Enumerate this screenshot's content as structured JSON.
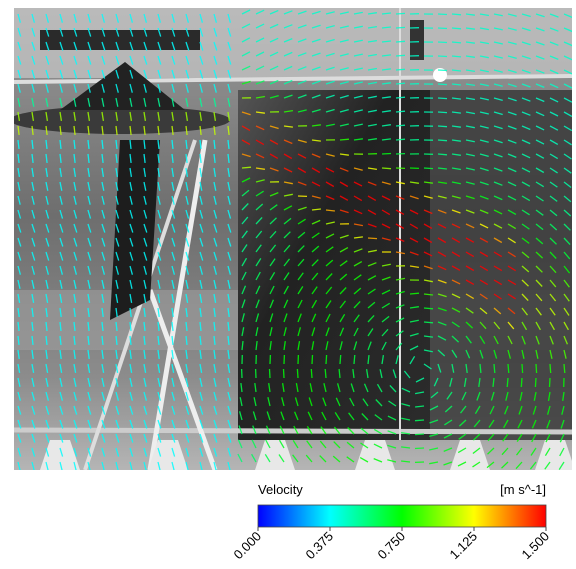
{
  "colorbar": {
    "title": "Velocity",
    "unit": "[m s^-1]",
    "range": [
      0,
      1.5
    ],
    "colors": [
      "#0000ff",
      "#00ffff",
      "#00ff00",
      "#ffff00",
      "#ff0000"
    ],
    "ticks": [
      {
        "value": 0,
        "label": "0.000"
      },
      {
        "value": 0.375,
        "label": "0.375"
      },
      {
        "value": 0.75,
        "label": "0.750"
      },
      {
        "value": 1.125,
        "label": "1.125"
      },
      {
        "value": 1.5,
        "label": "1.500"
      }
    ]
  }
}
